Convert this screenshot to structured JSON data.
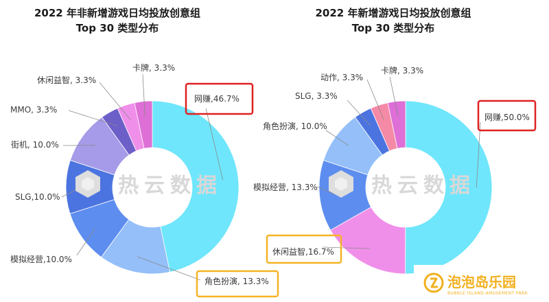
{
  "chart_data": [
    {
      "type": "pie",
      "title_line1": "2022 年非新增游戏日均投放创意组",
      "title_line2": "Top 30 类型分布",
      "slices": [
        {
          "name": "网赚",
          "value": 46.7,
          "label": "网赚,46.7%",
          "color": "#6fe6fb"
        },
        {
          "name": "角色扮演",
          "value": 13.3,
          "label": "角色扮演, 13.3%",
          "color": "#94bff9"
        },
        {
          "name": "模拟经营",
          "value": 10.0,
          "label": "模拟经营,10.0%",
          "color": "#5d8def"
        },
        {
          "name": "SLG",
          "value": 10.0,
          "label": "SLG,10.0%",
          "color": "#4c74e0"
        },
        {
          "name": "街机",
          "value": 10.0,
          "label": "街机, 10.0%",
          "color": "#a59be8"
        },
        {
          "name": "MMO",
          "value": 3.3,
          "label": "MMO, 3.3%",
          "color": "#6c5fc8"
        },
        {
          "name": "休闲益智",
          "value": 3.3,
          "label": "休闲益智, 3.3%",
          "color": "#f08fea"
        },
        {
          "name": "卡牌",
          "value": 3.3,
          "label": "卡牌, 3.3%",
          "color": "#dd6fd6"
        }
      ],
      "highlighted": {
        "网赚": "red",
        "角色扮演": "orange"
      }
    },
    {
      "type": "pie",
      "title_line1": "2022 年新增游戏日均投放创意组",
      "title_line2": "Top 30 类型分布",
      "slices": [
        {
          "name": "网赚",
          "value": 50.0,
          "label": "网赚,50.0%",
          "color": "#6fe6fb"
        },
        {
          "name": "休闲益智",
          "value": 16.7,
          "label": "休闲益智,16.7%",
          "color": "#f08fea"
        },
        {
          "name": "模拟经营",
          "value": 13.3,
          "label": "模拟经营, 13.3%",
          "color": "#5d8def"
        },
        {
          "name": "角色扮演",
          "value": 10.0,
          "label": "角色扮演, 10.0%",
          "color": "#94bff9"
        },
        {
          "name": "SLG",
          "value": 3.3,
          "label": "SLG, 3.3%",
          "color": "#4c74e0"
        },
        {
          "name": "动作",
          "value": 3.3,
          "label": "动作, 3.3%",
          "color": "#f58aa6"
        },
        {
          "name": "卡牌",
          "value": 3.3,
          "label": "卡牌, 3.3%",
          "color": "#dd6fd6"
        }
      ],
      "highlighted": {
        "网赚": "red",
        "休闲益智": "orange"
      }
    }
  ],
  "watermark": "热云数据",
  "logo": {
    "name": "泡泡岛乐园",
    "subtitle": "BUBBLE ISLAND AMUSEMENT PARK"
  },
  "colors": {
    "highlight_red": "#e02020",
    "highlight_orange": "#f5b325"
  }
}
